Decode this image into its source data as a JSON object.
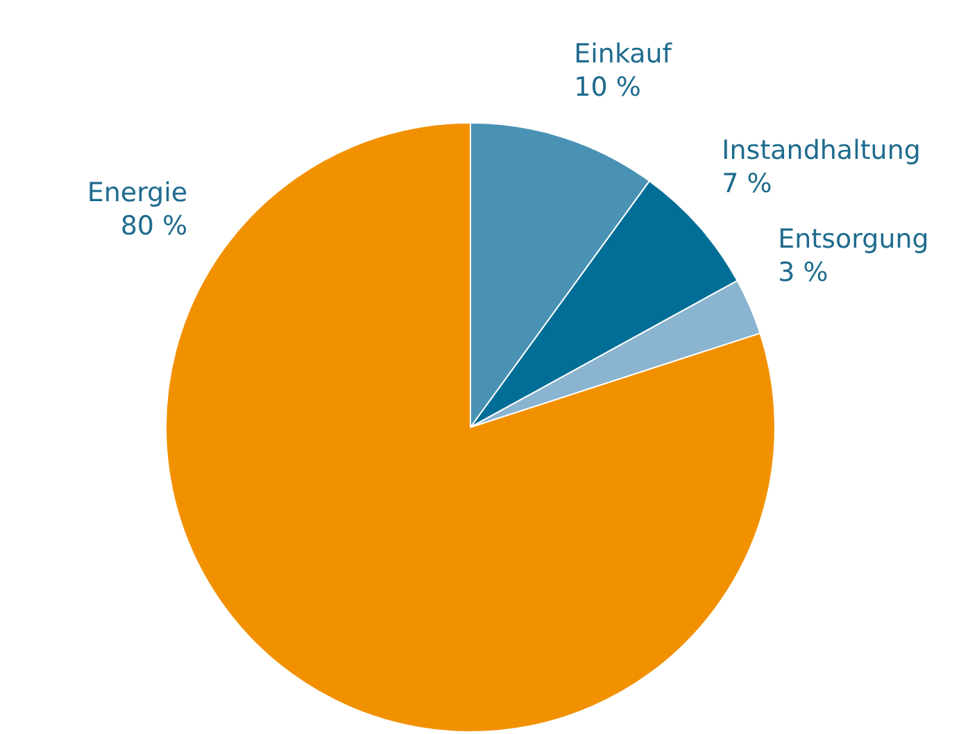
{
  "chart_data": {
    "type": "pie",
    "categories": [
      "Einkauf",
      "Instandhaltung",
      "Entsorgung",
      "Energie"
    ],
    "values": [
      10,
      7,
      3,
      80
    ],
    "colors": [
      "#4a92b4",
      "#006e96",
      "#8ab4cf",
      "#f29100"
    ],
    "value_labels": [
      "10 %",
      "7 %",
      "3 %",
      "80 %"
    ],
    "legend": false
  }
}
